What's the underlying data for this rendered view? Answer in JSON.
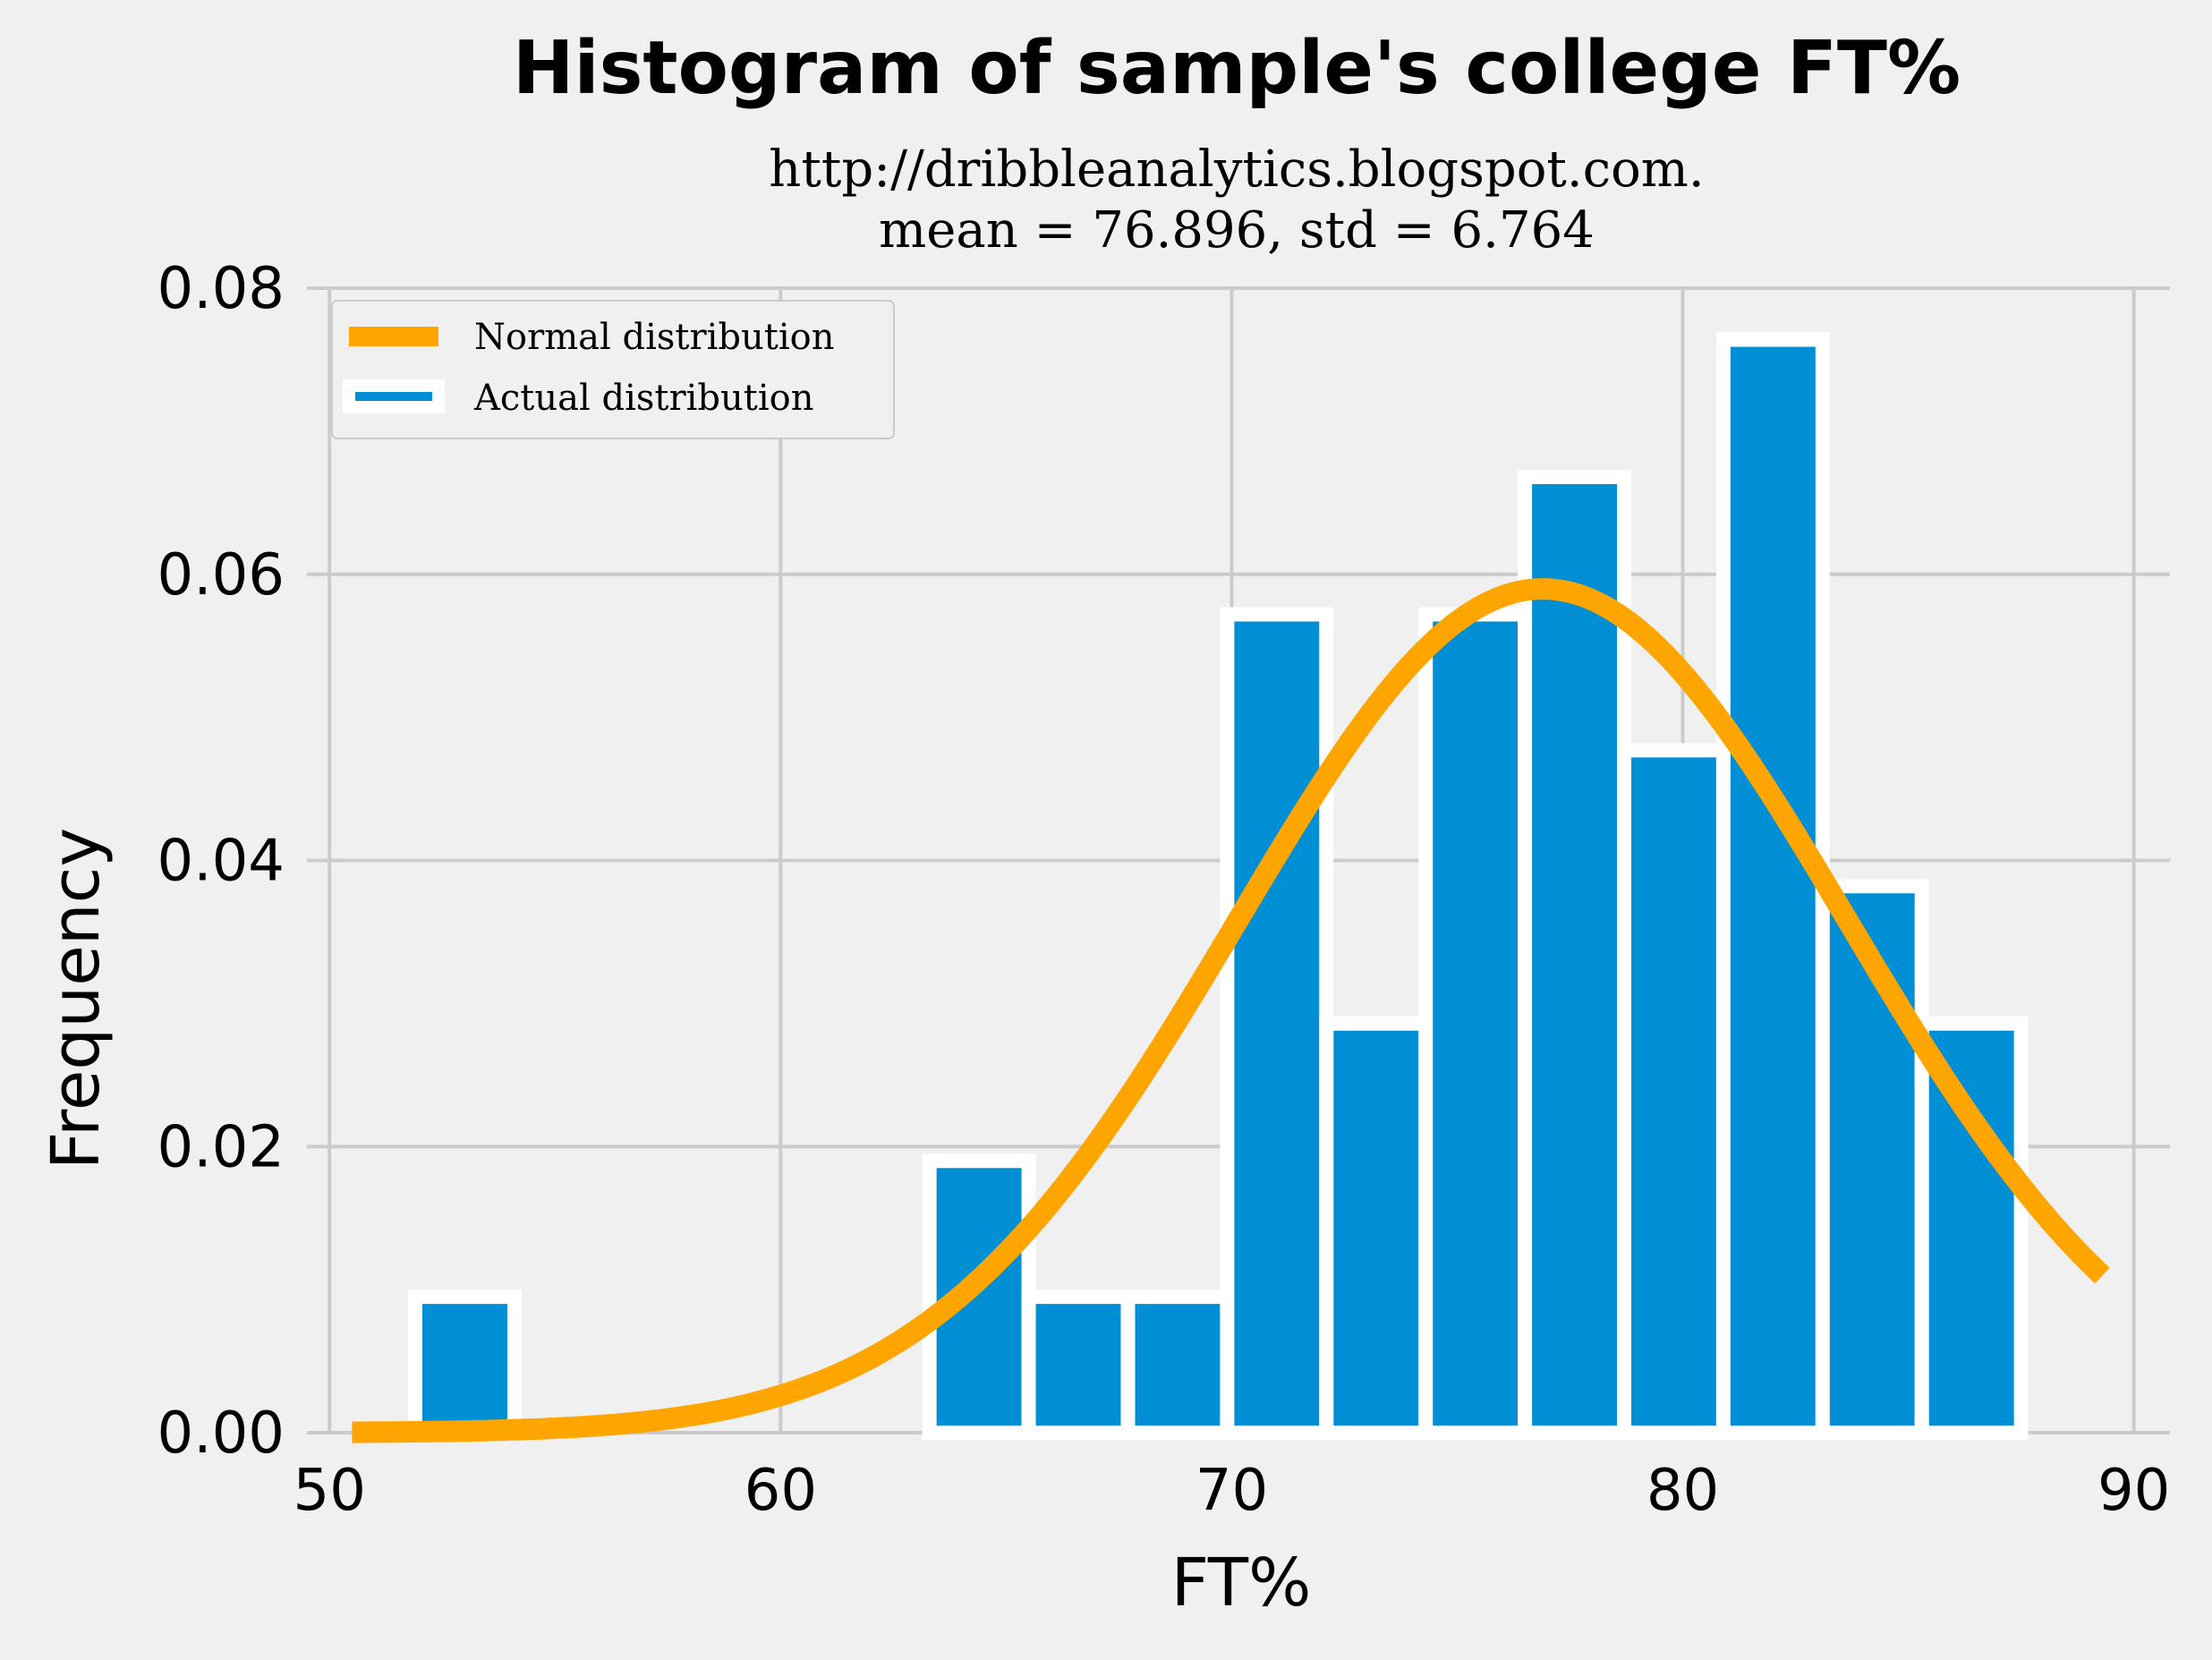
{
  "chart_data": {
    "type": "bar",
    "title": "Histogram of sample's college FT%",
    "subtitle_lines": [
      "http://dribbleanalytics.blogspot.com.",
      "mean = 76.896, std = 6.764"
    ],
    "xlabel": "FT%",
    "ylabel": "Frequency",
    "xlim": [
      49.5,
      90.8
    ],
    "ylim": [
      0,
      0.08
    ],
    "xticks": [
      50,
      60,
      70,
      80,
      90
    ],
    "yticks": [
      0.0,
      0.02,
      0.04,
      0.06,
      0.08
    ],
    "ytick_labels": [
      "0.00",
      "0.02",
      "0.04",
      "0.06",
      "0.08"
    ],
    "grid": true,
    "legend_position": "top-left",
    "colors": {
      "background": "#f0f0f0",
      "grid": "#cbcbcb",
      "bar_fill": "#008fd5",
      "bar_edge": "#ffffff",
      "normal_line": "#ffa500"
    },
    "bins": [
      {
        "x0": 51.9,
        "x1": 54.1,
        "value": 0.0095
      },
      {
        "x0": 63.3,
        "x1": 65.5,
        "value": 0.019
      },
      {
        "x0": 65.5,
        "x1": 67.7,
        "value": 0.0095
      },
      {
        "x0": 67.7,
        "x1": 69.9,
        "value": 0.0095
      },
      {
        "x0": 69.9,
        "x1": 72.1,
        "value": 0.0572
      },
      {
        "x0": 72.1,
        "x1": 74.3,
        "value": 0.0286
      },
      {
        "x0": 74.3,
        "x1": 76.5,
        "value": 0.0572
      },
      {
        "x0": 76.5,
        "x1": 78.7,
        "value": 0.0668
      },
      {
        "x0": 78.7,
        "x1": 80.9,
        "value": 0.0477
      },
      {
        "x0": 80.9,
        "x1": 83.1,
        "value": 0.0764
      },
      {
        "x0": 83.1,
        "x1": 85.3,
        "value": 0.0382
      },
      {
        "x0": 85.3,
        "x1": 87.5,
        "value": 0.0286
      }
    ],
    "series": [
      {
        "name": "Normal distribution",
        "type": "line",
        "mean": 76.896,
        "std": 6.764,
        "x_range": [
          50.5,
          89.3
        ]
      },
      {
        "name": "Actual distribution",
        "type": "bar"
      }
    ]
  }
}
